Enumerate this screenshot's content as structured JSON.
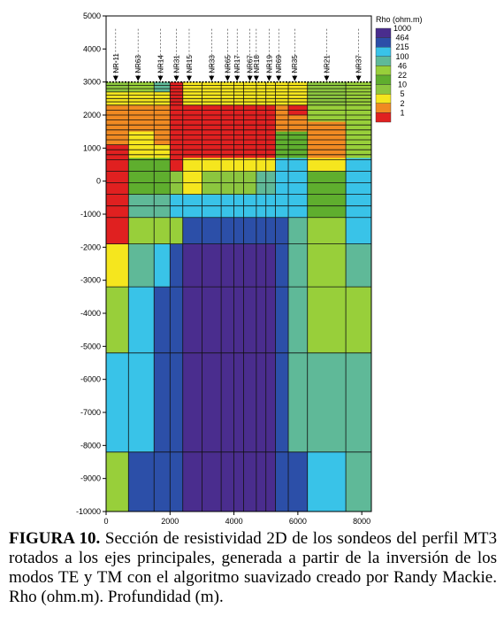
{
  "chart_data": {
    "type": "heatmap",
    "title": "",
    "xlabel": "",
    "ylabel": "",
    "xlim": [
      0,
      8300
    ],
    "ylim": [
      -10000,
      5000
    ],
    "x_ticks": [
      0,
      2000,
      4000,
      6000,
      8000
    ],
    "y_ticks": [
      5000,
      4000,
      3000,
      2000,
      1000,
      0,
      -1000,
      -2000,
      -3000,
      -4000,
      -5000,
      -6000,
      -7000,
      -8000,
      -9000,
      -10000
    ],
    "legend": {
      "title": "Rho (ohm.m)",
      "placement": "top-right",
      "levels": [
        {
          "label": "1000",
          "color": "#4a2d8e"
        },
        {
          "label": "464",
          "color": "#2c4fa8"
        },
        {
          "label": "215",
          "color": "#39c3e8"
        },
        {
          "label": "100",
          "color": "#5fb998"
        },
        {
          "label": "46",
          "color": "#98cf3a"
        },
        {
          "label": "22",
          "color": "#5fae2e"
        },
        {
          "label": "10",
          "color": "#8cc63f"
        },
        {
          "label": "5",
          "color": "#f5e61e"
        },
        {
          "label": "2",
          "color": "#f08a22"
        },
        {
          "label": "1",
          "color": "#e02020"
        }
      ]
    },
    "stations": [
      {
        "name": "NR-11",
        "x": 300
      },
      {
        "name": "NR63",
        "x": 1000
      },
      {
        "name": "NR14",
        "x": 1700
      },
      {
        "name": "NR31",
        "x": 2200
      },
      {
        "name": "NR15",
        "x": 2600
      },
      {
        "name": "NR33",
        "x": 3300
      },
      {
        "name": "NR65",
        "x": 3800
      },
      {
        "name": "NR17",
        "x": 4100
      },
      {
        "name": "NR67",
        "x": 4500
      },
      {
        "name": "NR18",
        "x": 4700
      },
      {
        "name": "NR19",
        "x": 5100
      },
      {
        "name": "NR69",
        "x": 5400
      },
      {
        "name": "NR35",
        "x": 5900
      },
      {
        "name": "NR21",
        "x": 6900
      },
      {
        "name": "NR37",
        "x": 7900
      }
    ],
    "surface_elevation": 3000,
    "columns": [
      0,
      700,
      1500,
      2000,
      2400,
      3000,
      3600,
      4000,
      4300,
      4700,
      5000,
      5300,
      5700,
      6300,
      7500,
      8300
    ],
    "zones": [
      {
        "x": [
          0,
          8300
        ],
        "y": [
          -10000,
          3000
        ],
        "rho": "46"
      },
      {
        "x": [
          0,
          700
        ],
        "y": [
          -3200,
          3000
        ],
        "rho": "1"
      },
      {
        "x": [
          0,
          700
        ],
        "y": [
          -3200,
          -1900
        ],
        "rho": "5"
      },
      {
        "x": [
          0,
          700
        ],
        "y": [
          -8200,
          -5200
        ],
        "rho": "215"
      },
      {
        "x": [
          700,
          1500
        ],
        "y": [
          -8200,
          -3200
        ],
        "rho": "215"
      },
      {
        "x": [
          700,
          1500
        ],
        "y": [
          -10000,
          -8200
        ],
        "rho": "464"
      },
      {
        "x": [
          700,
          1500
        ],
        "y": [
          -3200,
          -1900
        ],
        "rho": "100"
      },
      {
        "x": [
          1500,
          2400
        ],
        "y": [
          -10000,
          -3200
        ],
        "rho": "464"
      },
      {
        "x": [
          1500,
          2000
        ],
        "y": [
          -3200,
          -1900
        ],
        "rho": "215"
      },
      {
        "x": [
          2000,
          2400
        ],
        "y": [
          -3200,
          -1900
        ],
        "rho": "464"
      },
      {
        "x": [
          2400,
          5300
        ],
        "y": [
          -10000,
          -1900
        ],
        "rho": "1000"
      },
      {
        "x": [
          2400,
          3000
        ],
        "y": [
          -1900,
          -1100
        ],
        "rho": "464"
      },
      {
        "x": [
          3000,
          5300
        ],
        "y": [
          -1900,
          -1100
        ],
        "rho": "464"
      },
      {
        "x": [
          5300,
          5700
        ],
        "y": [
          -10000,
          -1100
        ],
        "rho": "464"
      },
      {
        "x": [
          5700,
          6300
        ],
        "y": [
          -10000,
          -8200
        ],
        "rho": "464"
      },
      {
        "x": [
          5700,
          6300
        ],
        "y": [
          -8200,
          -1100
        ],
        "rho": "100"
      },
      {
        "x": [
          6300,
          7500
        ],
        "y": [
          -10000,
          -8200
        ],
        "rho": "215"
      },
      {
        "x": [
          7500,
          8300
        ],
        "y": [
          -10000,
          -8200
        ],
        "rho": "100"
      },
      {
        "x": [
          6300,
          8300
        ],
        "y": [
          -8200,
          -5200
        ],
        "rho": "100"
      },
      {
        "x": [
          7500,
          8300
        ],
        "y": [
          -3200,
          -1900
        ],
        "rho": "100"
      },
      {
        "x": [
          7500,
          8300
        ],
        "y": [
          -1900,
          300
        ],
        "rho": "215"
      },
      {
        "x": [
          2000,
          5300
        ],
        "y": [
          -1100,
          -400
        ],
        "rho": "215"
      },
      {
        "x": [
          1500,
          2000
        ],
        "y": [
          -1100,
          -400
        ],
        "rho": "100"
      },
      {
        "x": [
          700,
          1500
        ],
        "y": [
          -1100,
          -400
        ],
        "rho": "100"
      },
      {
        "x": [
          5300,
          6300
        ],
        "y": [
          -1100,
          700
        ],
        "rho": "215"
      },
      {
        "x": [
          4700,
          5300
        ],
        "y": [
          -400,
          700
        ],
        "rho": "100"
      },
      {
        "x": [
          6300,
          7500
        ],
        "y": [
          -1100,
          300
        ],
        "rho": "22"
      },
      {
        "x": [
          700,
          2000
        ],
        "y": [
          -400,
          700
        ],
        "rho": "22"
      },
      {
        "x": [
          2000,
          4700
        ],
        "y": [
          -400,
          300
        ],
        "rho": "10"
      },
      {
        "x": [
          2400,
          3000
        ],
        "y": [
          -400,
          300
        ],
        "rho": "5"
      },
      {
        "x": [
          6300,
          7500
        ],
        "y": [
          300,
          700
        ],
        "rho": "5"
      },
      {
        "x": [
          7500,
          8300
        ],
        "y": [
          300,
          700
        ],
        "rho": "215"
      },
      {
        "x": [
          0,
          8300
        ],
        "y": [
          2300,
          3000
        ],
        "rho": "5"
      },
      {
        "x": [
          0,
          700
        ],
        "y": [
          2700,
          3000
        ],
        "rho": "10"
      },
      {
        "x": [
          700,
          1500
        ],
        "y": [
          2700,
          3000
        ],
        "rho": "46"
      },
      {
        "x": [
          1500,
          2000
        ],
        "y": [
          2700,
          3000
        ],
        "rho": "100"
      },
      {
        "x": [
          6300,
          7500
        ],
        "y": [
          2300,
          3000
        ],
        "rho": "10"
      },
      {
        "x": [
          7500,
          8300
        ],
        "y": [
          2300,
          3000
        ],
        "rho": "46"
      },
      {
        "x": [
          0,
          700
        ],
        "y": [
          1100,
          2300
        ],
        "rho": "2"
      },
      {
        "x": [
          700,
          1500
        ],
        "y": [
          1500,
          2300
        ],
        "rho": "2"
      },
      {
        "x": [
          1500,
          2000
        ],
        "y": [
          1100,
          2300
        ],
        "rho": "2"
      },
      {
        "x": [
          700,
          1500
        ],
        "y": [
          700,
          1500
        ],
        "rho": "5"
      },
      {
        "x": [
          2000,
          2400
        ],
        "y": [
          300,
          3000
        ],
        "rho": "1"
      },
      {
        "x": [
          2400,
          5300
        ],
        "y": [
          700,
          2300
        ],
        "rho": "1"
      },
      {
        "x": [
          5300,
          6300
        ],
        "y": [
          1500,
          2300
        ],
        "rho": "2"
      },
      {
        "x": [
          5700,
          6300
        ],
        "y": [
          2000,
          2300
        ],
        "rho": "1"
      },
      {
        "x": [
          5300,
          6300
        ],
        "y": [
          700,
          1500
        ],
        "rho": "22"
      },
      {
        "x": [
          6300,
          7500
        ],
        "y": [
          700,
          1800
        ],
        "rho": "2"
      },
      {
        "x": [
          6300,
          7500
        ],
        "y": [
          1800,
          2300
        ],
        "rho": "46"
      },
      {
        "x": [
          7500,
          8300
        ],
        "y": [
          700,
          2300
        ],
        "rho": "46"
      },
      {
        "x": [
          2400,
          5300
        ],
        "y": [
          300,
          700
        ],
        "rho": "5"
      },
      {
        "x": [
          0,
          700
        ],
        "y": [
          -1900,
          1100
        ],
        "rho": "1"
      },
      {
        "x": [
          1500,
          2000
        ],
        "y": [
          700,
          1100
        ],
        "rho": "5"
      }
    ]
  },
  "caption": {
    "label": "FIGURA 10.",
    "text": " Sección de resistividad 2D de los sondeos del perfil MT3 rotados a los ejes principales,  generada a partir de la inversión de los modos TE y TM  con el algoritmo suavizado creado por Randy Mackie. Rho (ohm.m). Profundidad (m)."
  }
}
